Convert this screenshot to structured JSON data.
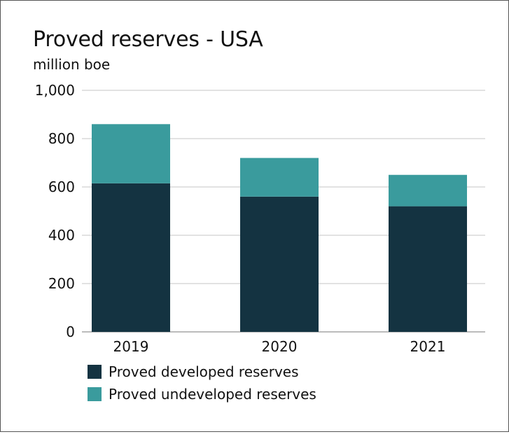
{
  "chart_data": {
    "type": "bar",
    "stacked": true,
    "title": "Proved reserves - USA",
    "subtitle": "million boe",
    "xlabel": "",
    "ylabel": "million boe",
    "ylim": [
      0,
      1000
    ],
    "yticks": [
      0,
      200,
      400,
      600,
      800,
      1000
    ],
    "ytick_labels": [
      "0",
      "200",
      "400",
      "600",
      "800",
      "1,000"
    ],
    "grid": true,
    "categories": [
      "2019",
      "2020",
      "2021"
    ],
    "series": [
      {
        "name": "Proved developed reserves",
        "color": "#143341",
        "values": [
          615,
          560,
          520
        ]
      },
      {
        "name": "Proved undeveloped reserves",
        "color": "#3a9b9d",
        "values": [
          245,
          160,
          130
        ]
      }
    ],
    "legend_placement": "bottom-left"
  }
}
